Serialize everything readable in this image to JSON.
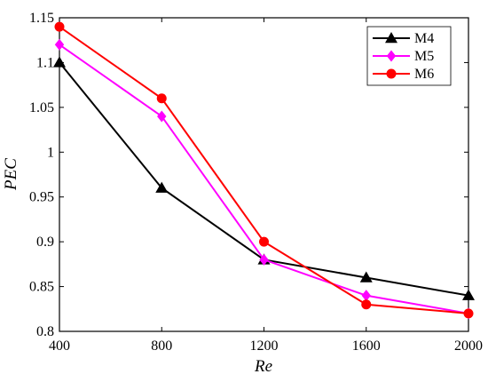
{
  "chart_data": {
    "type": "line",
    "title": "",
    "xlabel": "Re",
    "ylabel": "PEC",
    "x": [
      400,
      800,
      1200,
      1600,
      2000
    ],
    "xlim": [
      400,
      2000
    ],
    "ylim": [
      0.8,
      1.15
    ],
    "xticks": [
      "400",
      "800",
      "1200",
      "1600",
      "2000"
    ],
    "yticks": [
      "0.8",
      "0.85",
      "0.9",
      "0.95",
      "1",
      "1.05",
      "1.1",
      "1.15"
    ],
    "grid": false,
    "legend_position": "top-right",
    "series": [
      {
        "name": "M4",
        "values": [
          1.1,
          0.96,
          0.88,
          0.86,
          0.84
        ],
        "color": "#000000",
        "marker": "triangle"
      },
      {
        "name": "M5",
        "values": [
          1.12,
          1.04,
          0.88,
          0.84,
          0.82
        ],
        "color": "#ff00ff",
        "marker": "diamond"
      },
      {
        "name": "M6",
        "values": [
          1.14,
          1.06,
          0.9,
          0.83,
          0.82
        ],
        "color": "#ff0000",
        "marker": "circle"
      }
    ]
  }
}
